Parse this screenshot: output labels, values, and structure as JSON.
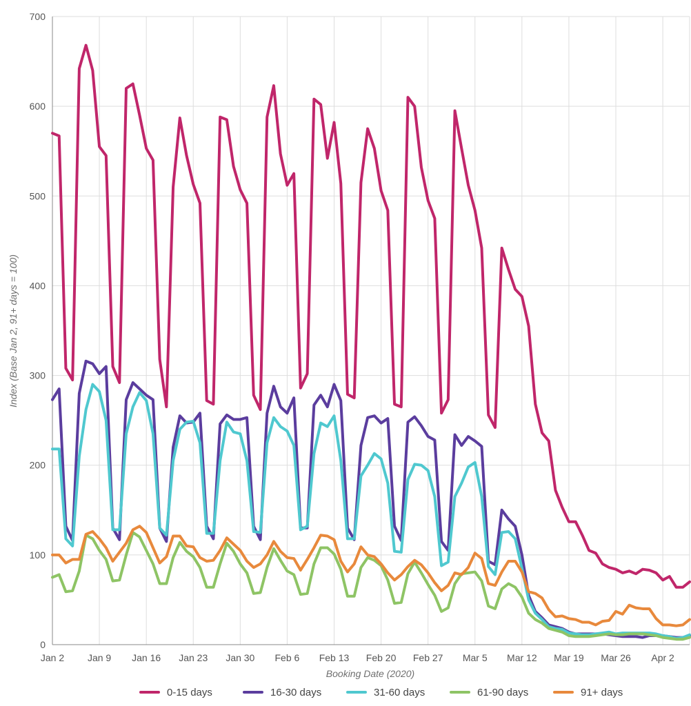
{
  "chart_data": {
    "type": "line",
    "title": "",
    "xlabel": "Booking Date (2020)",
    "ylabel": "Index (Base Jan 2, 91+ days = 100)",
    "ylim": [
      0,
      700
    ],
    "yticks": [
      0,
      100,
      200,
      300,
      400,
      500,
      600,
      700
    ],
    "x_start": "Jan 2",
    "x_end": "Apr 6",
    "xticks": [
      {
        "label": "Jan 2",
        "day": 0
      },
      {
        "label": "Jan 9",
        "day": 7
      },
      {
        "label": "Jan 16",
        "day": 14
      },
      {
        "label": "Jan 23",
        "day": 21
      },
      {
        "label": "Jan 30",
        "day": 28
      },
      {
        "label": "Feb 6",
        "day": 35
      },
      {
        "label": "Feb 13",
        "day": 42
      },
      {
        "label": "Feb 20",
        "day": 49
      },
      {
        "label": "Feb 27",
        "day": 56
      },
      {
        "label": "Mar 5",
        "day": 63
      },
      {
        "label": "Mar 12",
        "day": 70
      },
      {
        "label": "Mar 19",
        "day": 77
      },
      {
        "label": "Mar 26",
        "day": 84
      },
      {
        "label": "Apr 2",
        "day": 91
      }
    ],
    "grid": true,
    "legend_position": "bottom",
    "series": [
      {
        "name": "0-15 days",
        "color": "#c0266a",
        "values": [
          570,
          567,
          308,
          295,
          642,
          668,
          640,
          555,
          545,
          310,
          292,
          620,
          625,
          590,
          553,
          540,
          318,
          265,
          510,
          587,
          545,
          513,
          492,
          272,
          268,
          588,
          585,
          533,
          507,
          492,
          278,
          262,
          588,
          623,
          547,
          512,
          525,
          286,
          302,
          608,
          602,
          542,
          582,
          514,
          279,
          275,
          515,
          575,
          553,
          506,
          484,
          268,
          265,
          610,
          600,
          532,
          495,
          475,
          258,
          273,
          595,
          553,
          512,
          484,
          442,
          256,
          242,
          442,
          418,
          396,
          388,
          355,
          268,
          236,
          227,
          172,
          153,
          137,
          137,
          122,
          105,
          102,
          90,
          86,
          84,
          80,
          82,
          79,
          84,
          83,
          80,
          72,
          76,
          64,
          64,
          70
        ]
      },
      {
        "name": "16-30 days",
        "color": "#5b3d9e",
        "values": [
          273,
          285,
          132,
          116,
          280,
          316,
          313,
          302,
          310,
          130,
          117,
          273,
          292,
          285,
          278,
          273,
          130,
          115,
          220,
          255,
          247,
          248,
          258,
          132,
          118,
          246,
          256,
          251,
          251,
          253,
          132,
          117,
          258,
          288,
          265,
          258,
          275,
          130,
          130,
          267,
          278,
          265,
          290,
          272,
          130,
          117,
          222,
          253,
          255,
          247,
          252,
          132,
          116,
          248,
          254,
          244,
          232,
          228,
          115,
          105,
          234,
          222,
          232,
          227,
          221,
          93,
          89,
          150,
          140,
          132,
          100,
          55,
          37,
          30,
          22,
          20,
          18,
          14,
          12,
          12,
          12,
          12,
          12,
          11,
          10,
          9,
          9,
          9,
          8,
          10,
          10,
          10,
          9,
          8,
          8,
          10
        ]
      },
      {
        "name": "31-60 days",
        "color": "#4fc8cf",
        "values": [
          218,
          218,
          118,
          110,
          210,
          262,
          290,
          282,
          250,
          128,
          128,
          235,
          265,
          281,
          272,
          235,
          130,
          122,
          205,
          240,
          248,
          249,
          225,
          124,
          124,
          205,
          248,
          237,
          235,
          205,
          126,
          125,
          225,
          253,
          243,
          238,
          222,
          128,
          132,
          213,
          247,
          243,
          255,
          205,
          118,
          118,
          188,
          200,
          213,
          207,
          180,
          104,
          103,
          184,
          201,
          200,
          194,
          165,
          88,
          92,
          165,
          180,
          198,
          203,
          165,
          87,
          78,
          125,
          126,
          118,
          85,
          50,
          35,
          28,
          20,
          18,
          17,
          13,
          12,
          11,
          11,
          12,
          13,
          14,
          12,
          13,
          13,
          13,
          13,
          13,
          12,
          10,
          9,
          7,
          8,
          11
        ]
      },
      {
        "name": "61-90 days",
        "color": "#8ec465",
        "values": [
          75,
          78,
          59,
          60,
          82,
          122,
          118,
          105,
          95,
          71,
          72,
          100,
          125,
          120,
          105,
          90,
          68,
          68,
          97,
          114,
          104,
          98,
          86,
          64,
          64,
          90,
          113,
          104,
          90,
          80,
          57,
          58,
          86,
          107,
          94,
          82,
          78,
          56,
          57,
          90,
          108,
          108,
          101,
          84,
          54,
          54,
          86,
          97,
          94,
          88,
          72,
          46,
          47,
          79,
          92,
          80,
          67,
          55,
          37,
          41,
          68,
          79,
          80,
          81,
          71,
          43,
          40,
          62,
          68,
          64,
          53,
          35,
          28,
          24,
          18,
          16,
          14,
          10,
          9,
          9,
          9,
          10,
          11,
          12,
          11,
          11,
          12,
          12,
          12,
          11,
          10,
          8,
          7,
          6,
          6,
          8
        ]
      },
      {
        "name": "91+ days",
        "color": "#e8893c",
        "values": [
          100,
          100,
          91,
          95,
          95,
          123,
          126,
          118,
          108,
          93,
          103,
          113,
          128,
          132,
          125,
          108,
          91,
          98,
          121,
          121,
          110,
          109,
          97,
          93,
          94,
          105,
          119,
          112,
          105,
          93,
          86,
          90,
          100,
          115,
          104,
          97,
          96,
          83,
          95,
          108,
          122,
          121,
          117,
          93,
          81,
          90,
          109,
          100,
          98,
          90,
          80,
          72,
          78,
          87,
          94,
          89,
          80,
          69,
          60,
          66,
          80,
          78,
          86,
          102,
          96,
          68,
          66,
          81,
          93,
          93,
          81,
          59,
          57,
          52,
          39,
          31,
          32,
          29,
          28,
          25,
          25,
          22,
          26,
          27,
          37,
          34,
          44,
          41,
          40,
          40,
          29,
          22,
          22,
          21,
          22,
          28
        ]
      }
    ]
  }
}
